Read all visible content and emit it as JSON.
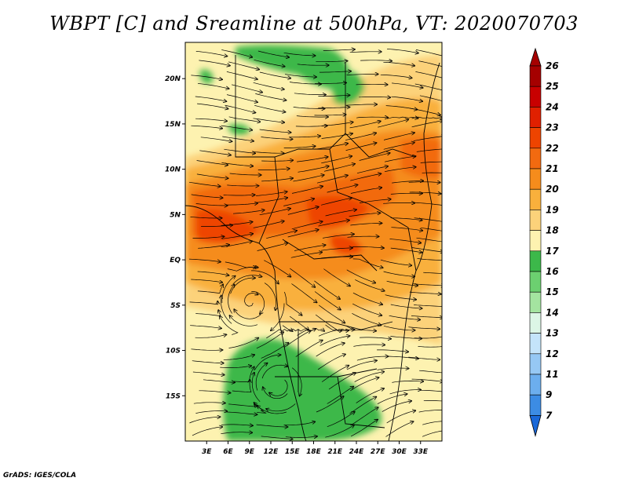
{
  "title": "WBPT [C] and Sreamline at 500hPa, VT: 2020070703",
  "credit": "GrADS: IGES/COLA",
  "map": {
    "lon_range": [
      0,
      36
    ],
    "lat_range": [
      -20,
      24
    ],
    "x_ticks": [
      {
        "value": 3,
        "label": "3E"
      },
      {
        "value": 6,
        "label": "6E"
      },
      {
        "value": 9,
        "label": "9E"
      },
      {
        "value": 12,
        "label": "12E"
      },
      {
        "value": 15,
        "label": "15E"
      },
      {
        "value": 18,
        "label": "18E"
      },
      {
        "value": 21,
        "label": "21E"
      },
      {
        "value": 24,
        "label": "24E"
      },
      {
        "value": 27,
        "label": "27E"
      },
      {
        "value": 30,
        "label": "30E"
      },
      {
        "value": 33,
        "label": "33E"
      }
    ],
    "y_ticks": [
      {
        "value": 20,
        "label": "20N"
      },
      {
        "value": 15,
        "label": "15N"
      },
      {
        "value": 10,
        "label": "10N"
      },
      {
        "value": 5,
        "label": "5N"
      },
      {
        "value": 0,
        "label": "EQ"
      },
      {
        "value": -5,
        "label": "5S"
      },
      {
        "value": -10,
        "label": "10S"
      },
      {
        "value": -15,
        "label": "15S"
      }
    ]
  },
  "colorbar": {
    "levels": [
      {
        "label": "26",
        "color": "#a50000"
      },
      {
        "label": "25",
        "color": "#c80000"
      },
      {
        "label": "24",
        "color": "#e02000"
      },
      {
        "label": "23",
        "color": "#ee4400"
      },
      {
        "label": "22",
        "color": "#f26a10"
      },
      {
        "label": "21",
        "color": "#f58c1c"
      },
      {
        "label": "20",
        "color": "#f9b03c"
      },
      {
        "label": "19",
        "color": "#fcd27a"
      },
      {
        "label": "18",
        "color": "#fdf2b0"
      },
      {
        "label": "17",
        "color": "#3cb84a"
      },
      {
        "label": "16",
        "color": "#6cd070"
      },
      {
        "label": "15",
        "color": "#a4e4a0"
      },
      {
        "label": "14",
        "color": "#dcf6e6"
      },
      {
        "label": "13",
        "color": "#c4e4fa"
      },
      {
        "label": "12",
        "color": "#96c8f4"
      },
      {
        "label": "11",
        "color": "#6caeee"
      },
      {
        "label": "9",
        "color": "#3c8ce4"
      },
      {
        "label": "7",
        "color": "#1a68d8"
      }
    ],
    "top_arrow_color": "#a50000",
    "bottom_arrow_color": "#1a68d8"
  },
  "colors": {
    "warm_pale": "#fdf2b0",
    "warm_light": "#fcd27a",
    "orange_light": "#f9b03c",
    "orange": "#f58c1c",
    "orange_dark": "#f26a10",
    "red_orange": "#ee4400",
    "green": "#3cb84a"
  }
}
